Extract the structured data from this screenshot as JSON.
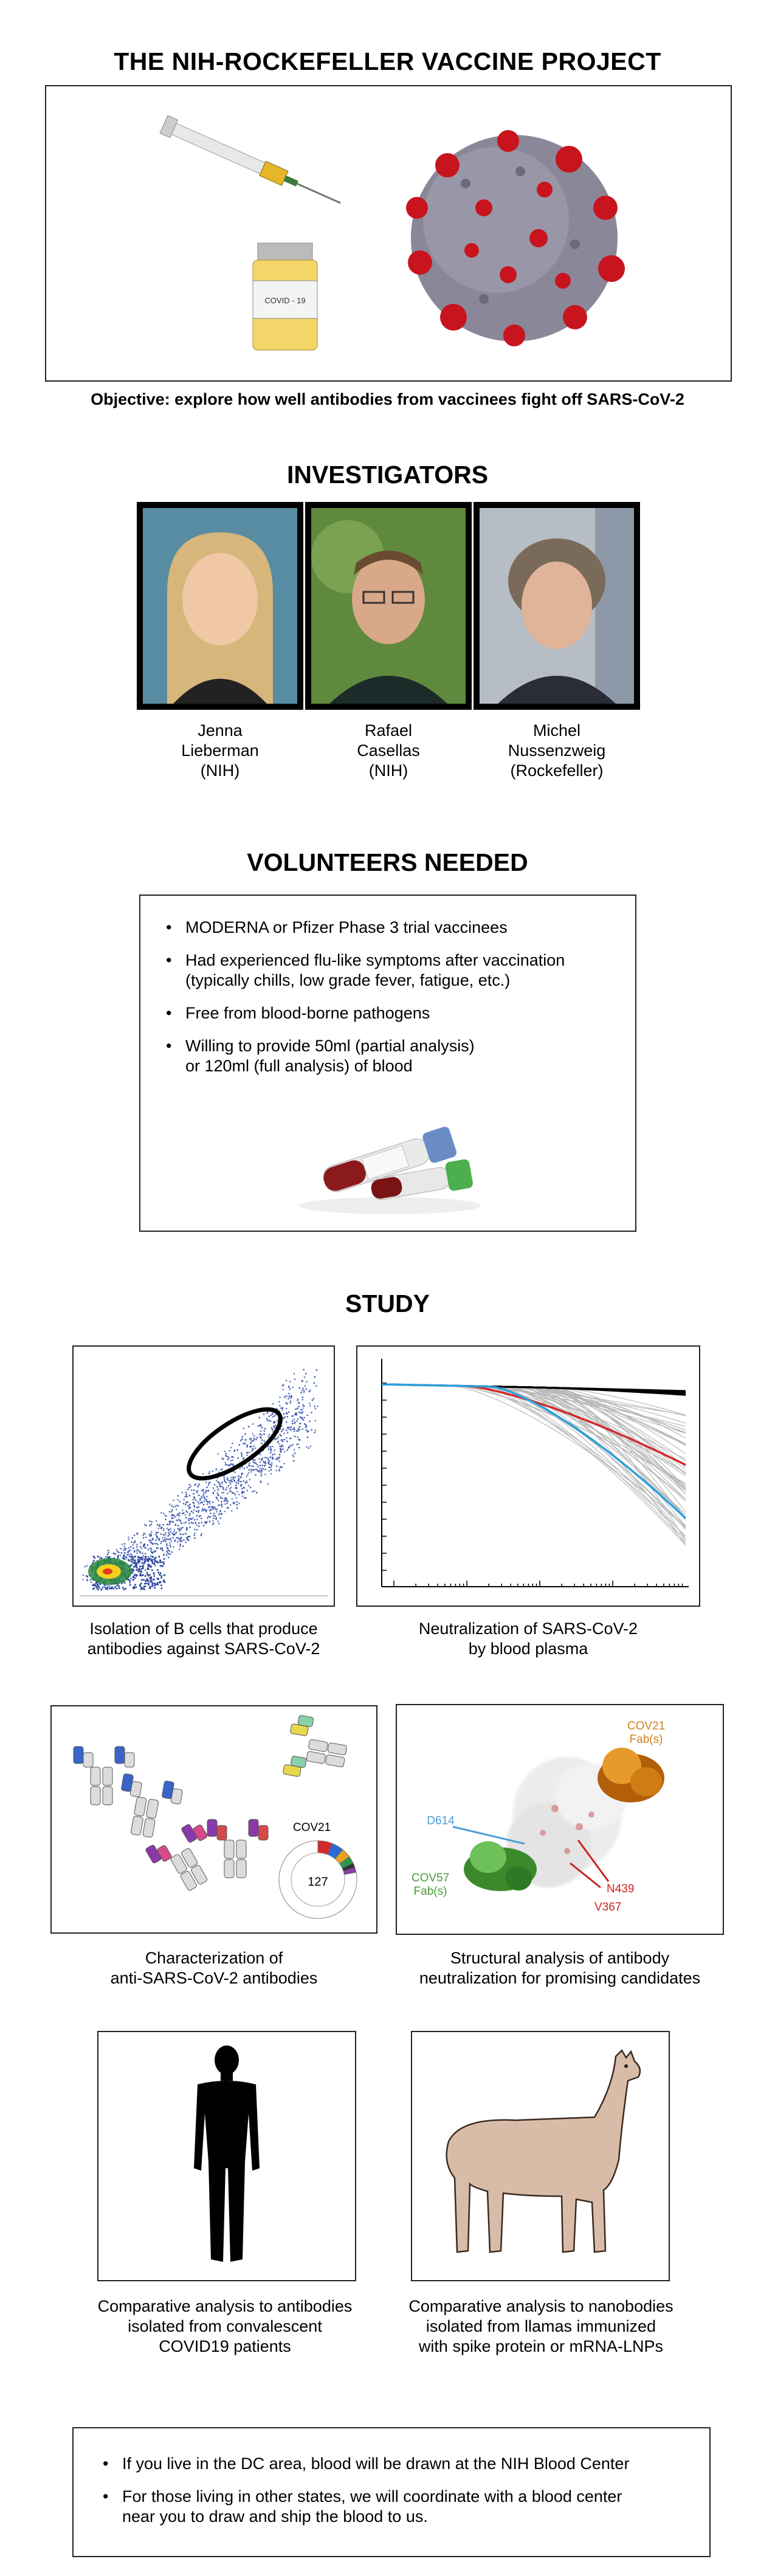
{
  "title": "THE NIH-ROCKEFELLER VACCINE PROJECT",
  "objective": "Objective: explore how well antibodies from vaccinees fight off SARS-CoV-2",
  "hero": {
    "vial_label": "COVID - 19"
  },
  "investigators": {
    "heading": "INVESTIGATORS",
    "people": [
      {
        "first": "Jenna",
        "last": "Lieberman",
        "affil": "(NIH)"
      },
      {
        "first": "Rafael",
        "last": "Casellas",
        "affil": "(NIH)"
      },
      {
        "first": "Michel",
        "last": "Nussenzweig",
        "affil": "(Rockefeller)"
      }
    ]
  },
  "volunteers": {
    "heading": "VOLUNTEERS NEEDED",
    "items": [
      {
        "line1": "MODERNA  or Pfizer  Phase 3 trial vaccinees",
        "line2": ""
      },
      {
        "line1": "Had experienced flu-like symptoms after vaccination",
        "line2": "(typically chills, low grade fever, fatigue, etc.)"
      },
      {
        "line1": "Free from blood-borne pathogens",
        "line2": ""
      },
      {
        "line1": "Willing to provide 50ml (partial analysis)",
        "line2": "or 120ml (full analysis) of blood"
      }
    ]
  },
  "study": {
    "heading": "STUDY",
    "panels": [
      {
        "line1": "Isolation of B cells that produce",
        "line2": "antibodies against SARS-CoV-2"
      },
      {
        "line1": "Neutralization of SARS-CoV-2",
        "line2": "by blood plasma"
      },
      {
        "line1": "Characterization of",
        "line2": "anti-SARS-CoV-2 antibodies"
      },
      {
        "line1": "Structural analysis of antibody",
        "line2": "neutralization for promising candidates"
      },
      {
        "line1": "Comparative analysis to antibodies",
        "line2": "isolated from convalescent",
        "line3": "COVID19 patients"
      },
      {
        "line1": "Comparative analysis to nanobodies",
        "line2": "isolated from llamas immunized",
        "line3": "with spike protein or mRNA-LNPs"
      }
    ],
    "characterization": {
      "donut_label": "COV21",
      "donut_count": "127"
    },
    "structure": {
      "cov21_line1": "COV21",
      "cov21_line2": "Fab(s)",
      "cov57_line1": "COV57",
      "cov57_line2": "Fab(s)",
      "d614": "D614",
      "n439": "N439",
      "v367": "V367",
      "colors": {
        "cov21": "#d2801e",
        "cov57": "#4a9a3c",
        "d614": "#4a9ed8",
        "red": "#cc2222"
      }
    }
  },
  "footer": {
    "items": [
      {
        "line1": "If you live in the DC area, blood will be drawn at the NIH Blood Center",
        "line2": ""
      },
      {
        "line1": "For those living in other states, we will coordinate with a blood center",
        "line2": "near you to draw and ship the blood to us."
      }
    ]
  }
}
